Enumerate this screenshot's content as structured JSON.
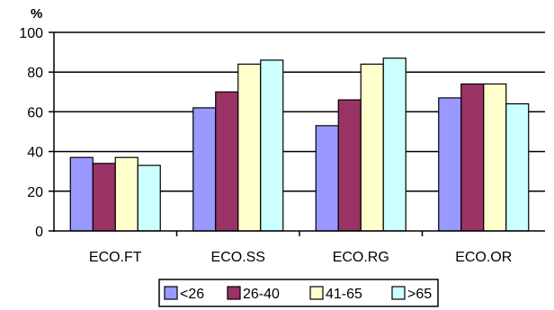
{
  "chart_data": {
    "type": "bar",
    "title": "",
    "xlabel": "",
    "ylabel": "%",
    "ylim": [
      0,
      100
    ],
    "yticks": [
      0,
      20,
      40,
      60,
      80,
      100
    ],
    "grid": true,
    "legend_position": "bottom",
    "categories": [
      "ECO.FT",
      "ECO.SS",
      "ECO.RG",
      "ECO.OR"
    ],
    "series": [
      {
        "name": "<26",
        "color": "#9999ff",
        "values": [
          37,
          62,
          53,
          67
        ]
      },
      {
        "name": "26-40",
        "color": "#993366",
        "values": [
          34,
          70,
          66,
          74
        ]
      },
      {
        "name": "41-65",
        "color": "#ffffcc",
        "values": [
          37,
          84,
          84,
          74
        ]
      },
      {
        "name": ">65",
        "color": "#ccffff",
        "values": [
          33,
          86,
          87,
          64
        ]
      }
    ]
  }
}
